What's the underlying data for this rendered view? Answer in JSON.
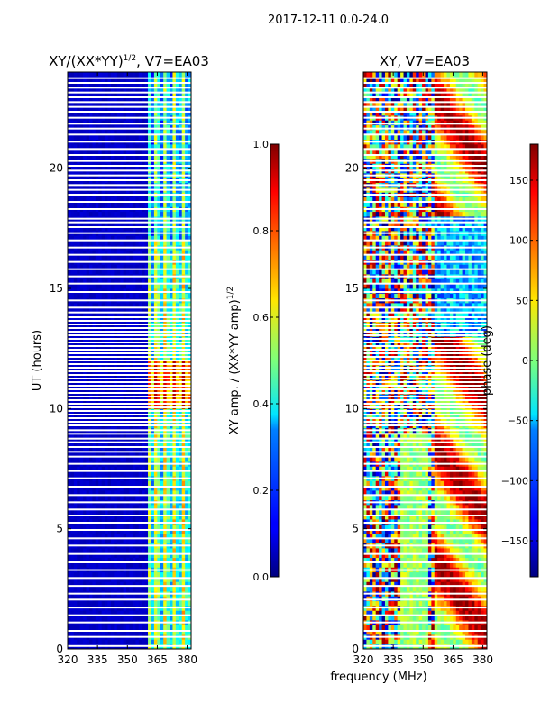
{
  "suptitle": "2017-12-11 0.0-24.0",
  "chart_data": [
    {
      "type": "heatmap",
      "title_main": "XY/(XX*YY)",
      "title_sup": "1/2",
      "title_suffix": ", V7=EA03",
      "xlabel": "",
      "ylabel": "UT (hours)",
      "xlim": [
        320,
        382
      ],
      "ylim": [
        0,
        24
      ],
      "xticks": [
        "320",
        "335",
        "350",
        "365",
        "380"
      ],
      "xtick_values": [
        320,
        335,
        350,
        365,
        380
      ],
      "yticks": [
        "0",
        "5",
        "10",
        "15",
        "20"
      ],
      "ytick_values": [
        0,
        5,
        10,
        15,
        20
      ],
      "colormap": "jet",
      "colorbar": {
        "label_main": "XY amp. / (XX*YY amp)",
        "label_sup": "1/2",
        "range": [
          0.0,
          1.0
        ],
        "ticks": [
          "0.0",
          "0.2",
          "0.4",
          "0.6",
          "0.8",
          "1.0"
        ],
        "tick_values": [
          0.0,
          0.2,
          0.4,
          0.6,
          0.8,
          1.0
        ]
      },
      "summary": {
        "low_band_mhz": [
          320,
          361
        ],
        "low_band_value": 0.05,
        "high_band_mhz": [
          361,
          382
        ],
        "high_band_value_range": [
          0.2,
          0.9
        ],
        "peak_ut_hours": [
          10,
          12
        ],
        "peak_value": 0.85
      }
    },
    {
      "type": "heatmap",
      "title": "XY, V7=EA03",
      "xlabel": "frequency (MHz)",
      "ylabel": "",
      "xlim": [
        320,
        382
      ],
      "ylim": [
        0,
        24
      ],
      "xticks": [
        "320",
        "335",
        "350",
        "365",
        "380"
      ],
      "xtick_values": [
        320,
        335,
        350,
        365,
        380
      ],
      "yticks": [
        "0",
        "5",
        "10",
        "15",
        "20"
      ],
      "ytick_values": [
        0,
        5,
        10,
        15,
        20
      ],
      "colormap": "jet",
      "colorbar": {
        "label": "phase (deg)",
        "range": [
          -180,
          180
        ],
        "ticks": [
          "−150",
          "−100",
          "−50",
          "0",
          "50",
          "100",
          "150"
        ],
        "tick_values": [
          -150,
          -100,
          -50,
          0,
          50,
          100,
          150
        ]
      },
      "summary": {
        "phase_range_deg": [
          -180,
          180
        ],
        "noisy_low_frequency_mhz": [
          320,
          355
        ],
        "smooth_high_frequency_mhz": [
          355,
          382
        ]
      }
    }
  ],
  "flagged_ut_hours": [
    0.12,
    0.5,
    0.75,
    1.1,
    1.4,
    1.72,
    2.05,
    2.3,
    2.62,
    2.95,
    3.28,
    3.6,
    3.95,
    4.3,
    4.6,
    4.95,
    5.25,
    5.55,
    5.8,
    6.1,
    6.4,
    6.75,
    7.1,
    7.4,
    7.7,
    8.0,
    8.2,
    8.4,
    8.6,
    8.75,
    8.95,
    9.1,
    9.3,
    9.45,
    9.6,
    9.75,
    9.9,
    10.05,
    10.2,
    10.35,
    10.5,
    10.65,
    10.8,
    10.95,
    11.1,
    11.25,
    11.4,
    11.55,
    11.7,
    11.85,
    12.0,
    12.15,
    12.3,
    12.45,
    12.6,
    12.75,
    12.9,
    13.05,
    13.2,
    13.35,
    13.5,
    13.65,
    13.8,
    14.0,
    14.2,
    14.5,
    14.85,
    15.2,
    15.5,
    15.8,
    16.1,
    16.4,
    16.7,
    17.0,
    17.3,
    17.55,
    17.75,
    17.9,
    18.3,
    18.6,
    18.9,
    19.1,
    19.3,
    19.5,
    19.7,
    19.9,
    20.1,
    20.3,
    20.55,
    20.8,
    21.1,
    21.4,
    21.65,
    21.85,
    22.1,
    22.35,
    22.55,
    22.75,
    22.95,
    23.15,
    23.35,
    23.55,
    23.75
  ]
}
